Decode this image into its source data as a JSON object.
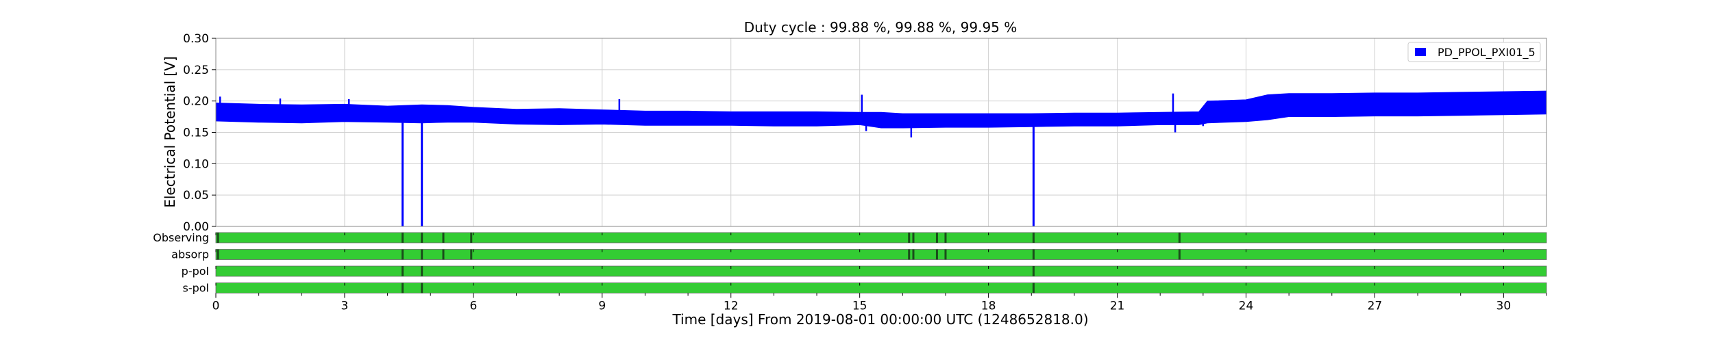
{
  "chart_data": {
    "type": "line",
    "title": "Duty cycle : 99.88 %, 99.88 %, 99.95 %",
    "xlabel": "Time [days] From 2019-08-01 00:00:00 UTC (1248652818.0)",
    "ylabel": "Electrical Potential [V]",
    "xlim": [
      0,
      31
    ],
    "ylim": [
      0,
      0.3
    ],
    "xticks": [
      0,
      3,
      6,
      9,
      12,
      15,
      18,
      21,
      24,
      27,
      30
    ],
    "xtick_labels": [
      "0",
      "3",
      "6",
      "9",
      "12",
      "15",
      "18",
      "21",
      "24",
      "27",
      "30"
    ],
    "yticks": [
      0,
      0.05,
      0.1,
      0.15,
      0.2,
      0.25,
      0.3
    ],
    "ytick_labels": [
      "0.00",
      "0.05",
      "0.10",
      "0.15",
      "0.20",
      "0.25",
      "0.30"
    ],
    "grid": true,
    "legend_position": "top-right",
    "series": [
      {
        "name": "PD_PPOL_PXI01_5",
        "color": "#0000ff",
        "band": {
          "x": [
            0,
            1,
            2,
            3,
            4,
            4.8,
            5.4,
            6,
            7,
            8,
            9,
            10,
            11,
            12,
            13,
            14,
            15,
            15.5,
            16,
            17,
            18,
            19,
            20,
            21,
            22,
            22.9,
            23.1,
            24,
            24.5,
            25,
            26,
            27,
            28,
            29,
            30,
            31
          ],
          "low": [
            0.168,
            0.166,
            0.165,
            0.167,
            0.166,
            0.165,
            0.166,
            0.166,
            0.163,
            0.162,
            0.163,
            0.161,
            0.161,
            0.161,
            0.16,
            0.16,
            0.162,
            0.157,
            0.157,
            0.158,
            0.158,
            0.159,
            0.16,
            0.16,
            0.162,
            0.162,
            0.165,
            0.167,
            0.17,
            0.175,
            0.175,
            0.176,
            0.176,
            0.177,
            0.178,
            0.179
          ],
          "high": [
            0.197,
            0.195,
            0.194,
            0.195,
            0.192,
            0.194,
            0.193,
            0.19,
            0.187,
            0.188,
            0.186,
            0.184,
            0.184,
            0.183,
            0.183,
            0.183,
            0.182,
            0.182,
            0.18,
            0.18,
            0.18,
            0.18,
            0.181,
            0.181,
            0.182,
            0.183,
            0.2,
            0.202,
            0.21,
            0.212,
            0.212,
            0.213,
            0.213,
            0.214,
            0.215,
            0.216
          ]
        },
        "dropouts": [
          4.35,
          4.8,
          19.05
        ],
        "spikes": [
          {
            "x": 0.1,
            "y": 0.207
          },
          {
            "x": 1.5,
            "y": 0.204
          },
          {
            "x": 3.1,
            "y": 0.203
          },
          {
            "x": 9.4,
            "y": 0.203
          },
          {
            "x": 15.05,
            "y": 0.21
          },
          {
            "x": 15.15,
            "y": 0.152
          },
          {
            "x": 16.2,
            "y": 0.142
          },
          {
            "x": 22.3,
            "y": 0.212
          },
          {
            "x": 22.35,
            "y": 0.15
          },
          {
            "x": 23.0,
            "y": 0.16
          }
        ]
      }
    ],
    "segments": [
      {
        "label": "Observing",
        "color": "#33cc33",
        "gaps": [
          0.05,
          4.35,
          4.8,
          5.3,
          5.95,
          16.15,
          16.25,
          16.8,
          17.0,
          19.05,
          22.45
        ]
      },
      {
        "label": "absorp",
        "color": "#33cc33",
        "gaps": [
          0.05,
          4.35,
          4.8,
          5.3,
          5.95,
          16.15,
          16.25,
          16.8,
          17.0,
          19.05,
          22.45
        ]
      },
      {
        "label": "p-pol",
        "color": "#33cc33",
        "gaps": [
          4.35,
          4.8,
          19.05
        ]
      },
      {
        "label": "s-pol",
        "color": "#33cc33",
        "gaps": [
          4.35,
          4.8,
          19.05
        ]
      }
    ]
  }
}
